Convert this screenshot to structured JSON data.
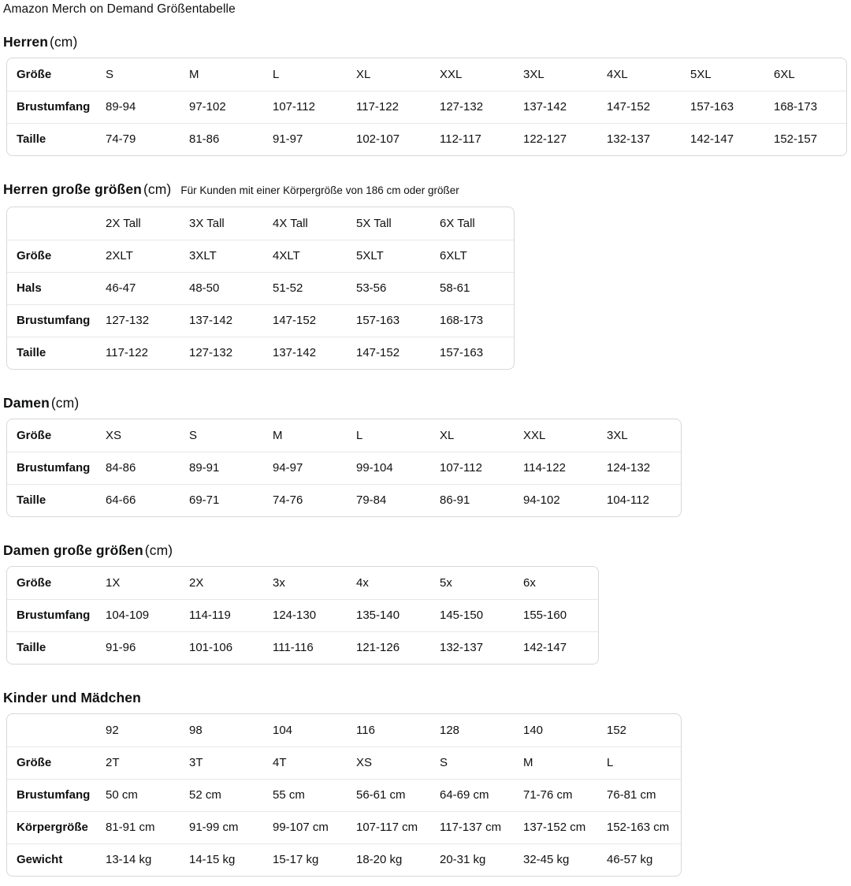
{
  "page_title": "Amazon Merch on Demand Größentabelle",
  "colors": {
    "text": "#0f1111",
    "table_border": "#d5d9d9",
    "row_divider": "#e7e7e7",
    "background": "#ffffff"
  },
  "sections": [
    {
      "id": "herren",
      "heading": "Herren",
      "unit": "(cm)",
      "note": "",
      "rows": [
        [
          "Größe",
          "S",
          "M",
          "L",
          "XL",
          "XXL",
          "3XL",
          "4XL",
          "5XL",
          "6XL"
        ],
        [
          "Brustumfang",
          "89-94",
          "97-102",
          "107-112",
          "117-122",
          "127-132",
          "137-142",
          "147-152",
          "157-163",
          "168-173"
        ],
        [
          "Taille",
          "74-79",
          "81-86",
          "91-97",
          "102-107",
          "112-117",
          "122-127",
          "132-137",
          "142-147",
          "152-157"
        ]
      ]
    },
    {
      "id": "herren-grosse-groessen",
      "heading": "Herren große größen",
      "unit": "(cm)",
      "note": "Für Kunden mit einer Körpergröße von 186 cm oder größer",
      "rows": [
        [
          "",
          "2X Tall",
          "3X Tall",
          "4X Tall",
          "5X Tall",
          "6X Tall"
        ],
        [
          "Größe",
          "2XLT",
          "3XLT",
          "4XLT",
          "5XLT",
          "6XLT"
        ],
        [
          "Hals",
          "46-47",
          "48-50",
          "51-52",
          "53-56",
          "58-61"
        ],
        [
          "Brustumfang",
          "127-132",
          "137-142",
          "147-152",
          "157-163",
          "168-173"
        ],
        [
          "Taille",
          "117-122",
          "127-132",
          "137-142",
          "147-152",
          "157-163"
        ]
      ]
    },
    {
      "id": "damen",
      "heading": "Damen",
      "unit": "(cm)",
      "note": "",
      "rows": [
        [
          "Größe",
          "XS",
          "S",
          "M",
          "L",
          "XL",
          "XXL",
          "3XL"
        ],
        [
          "Brustumfang",
          "84-86",
          "89-91",
          "94-97",
          "99-104",
          "107-112",
          "114-122",
          "124-132"
        ],
        [
          "Taille",
          "64-66",
          "69-71",
          "74-76",
          "79-84",
          "86-91",
          "94-102",
          "104-112"
        ]
      ]
    },
    {
      "id": "damen-grosse-groessen",
      "heading": "Damen große größen",
      "unit": "(cm)",
      "note": "",
      "rows": [
        [
          "Größe",
          "1X",
          "2X",
          "3x",
          "4x",
          "5x",
          "6x"
        ],
        [
          "Brustumfang",
          "104-109",
          "114-119",
          "124-130",
          "135-140",
          "145-150",
          "155-160"
        ],
        [
          "Taille",
          "91-96",
          "101-106",
          "111-116",
          "121-126",
          "132-137",
          "142-147"
        ]
      ]
    },
    {
      "id": "kinder-und-maedchen",
      "heading": "Kinder und Mädchen",
      "unit": "",
      "note": "",
      "rows": [
        [
          "",
          "92",
          "98",
          "104",
          "116",
          "128",
          "140",
          "152"
        ],
        [
          "Größe",
          "2T",
          "3T",
          "4T",
          "XS",
          "S",
          "M",
          "L"
        ],
        [
          "Brustumfang",
          "50 cm",
          "52 cm",
          "55 cm",
          "56-61 cm",
          "64-69 cm",
          "71-76 cm",
          "76-81 cm"
        ],
        [
          "Körpergröße",
          "81-91 cm",
          "91-99 cm",
          "99-107 cm",
          "107-117 cm",
          "117-137 cm",
          "137-152 cm",
          "152-163 cm"
        ],
        [
          "Gewicht",
          "13-14 kg",
          "14-15 kg",
          "15-17 kg",
          "18-20 kg",
          "20-31 kg",
          "32-45 kg",
          "46-57 kg"
        ]
      ]
    }
  ]
}
